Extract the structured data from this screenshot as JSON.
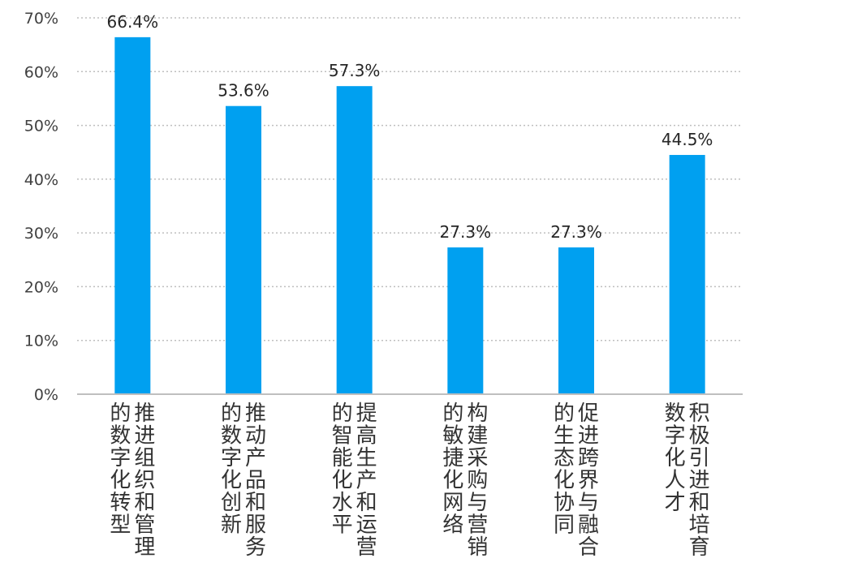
{
  "chart_data": {
    "type": "bar",
    "categories": [
      [
        "推进组织和管理",
        "的数字化转型"
      ],
      [
        "推动产品和服务",
        "的数字化创新"
      ],
      [
        "提高生产和运营",
        "的智能化水平"
      ],
      [
        "构建采购与营销",
        "的敏捷化网络"
      ],
      [
        "促进跨界与融合",
        "的生态化协同"
      ],
      [
        "积极引进和培育",
        "数字化人才"
      ]
    ],
    "values": [
      66.4,
      53.6,
      57.3,
      27.3,
      27.3,
      44.5
    ],
    "value_labels": [
      "66.4%",
      "53.6%",
      "57.3%",
      "27.3%",
      "27.3%",
      "44.5%"
    ],
    "y_ticks": [
      "0%",
      "10%",
      "20%",
      "30%",
      "40%",
      "50%",
      "60%",
      "70%"
    ],
    "ylim": [
      0,
      70
    ],
    "grid": true,
    "bar_color": "#00A0F0",
    "grid_color": "#BFBFBF",
    "axis_color": "#BFBFBF"
  }
}
